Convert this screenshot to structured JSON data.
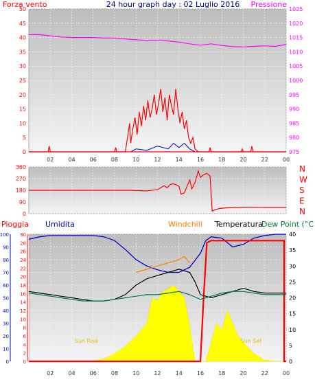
{
  "header": {
    "left_title": "Forza vento",
    "center_title": "24 hour graph day : 02 Luglio 2016",
    "right_title": "Pressione"
  },
  "colors": {
    "wind_red": "#ff0000",
    "pressure_magenta": "#ff00ff",
    "humidity_blue": "#0000cc",
    "windchill_orange": "#ff8000",
    "temperature_black": "#000000",
    "dewpoint_green": "#007a3d",
    "solar_yellow": "#ffff00",
    "title_blue": "#000080",
    "plot_bg_top": "#bdbdbd",
    "plot_bg_bottom": "#f4f4f4"
  },
  "chart_data": [
    {
      "type": "line",
      "name": "wind-pressure",
      "left_axis": {
        "ticks": [
          "0",
          "5",
          "10",
          "15",
          "20",
          "25",
          "30",
          "35",
          "40",
          "45",
          "50"
        ],
        "ylim": [
          0,
          50
        ]
      },
      "right_axis": {
        "ticks": [
          "975",
          "980",
          "985",
          "990",
          "995",
          "1000",
          "1005",
          "1010",
          "1015",
          "1020",
          "1025"
        ],
        "ylim": [
          975,
          1025
        ]
      },
      "x_ticks": [
        "02",
        "04",
        "06",
        "08",
        "10",
        "12",
        "14",
        "16",
        "18",
        "20",
        "22",
        "00"
      ],
      "xlim": [
        0,
        24
      ],
      "series": [
        {
          "axis": "right",
          "points": [
            [
              0,
              1016
            ],
            [
              1,
              1016
            ],
            [
              2,
              1015.6
            ],
            [
              3,
              1015.2
            ],
            [
              4,
              1015
            ],
            [
              5,
              1015
            ],
            [
              6,
              1015
            ],
            [
              7,
              1014.8
            ],
            [
              8,
              1014.8
            ],
            [
              9,
              1014.5
            ],
            [
              10,
              1014.2
            ],
            [
              11,
              1014
            ],
            [
              12,
              1014
            ],
            [
              13,
              1013.8
            ],
            [
              14,
              1013.4
            ],
            [
              15,
              1012.8
            ],
            [
              16,
              1012.3
            ],
            [
              17,
              1012.8
            ],
            [
              18,
              1012.2
            ],
            [
              19,
              1011.8
            ],
            [
              20,
              1011.7
            ],
            [
              21,
              1011.9
            ],
            [
              22,
              1012.1
            ],
            [
              23,
              1011.9
            ],
            [
              24,
              1012.6
            ]
          ]
        },
        {
          "axis": "left",
          "points": [
            [
              0,
              0
            ],
            [
              1.8,
              0
            ],
            [
              1.9,
              2
            ],
            [
              2.0,
              0
            ],
            [
              8.0,
              0
            ],
            [
              8.1,
              1.5
            ],
            [
              8.2,
              0
            ],
            [
              9.0,
              0
            ],
            [
              9.2,
              5
            ],
            [
              9.4,
              10
            ],
            [
              9.5,
              3
            ],
            [
              9.7,
              8
            ],
            [
              9.9,
              12
            ],
            [
              10.1,
              6
            ],
            [
              10.3,
              14
            ],
            [
              10.5,
              9
            ],
            [
              10.7,
              16
            ],
            [
              10.9,
              11
            ],
            [
              11.1,
              18
            ],
            [
              11.3,
              12
            ],
            [
              11.5,
              15
            ],
            [
              11.7,
              20
            ],
            [
              11.9,
              13
            ],
            [
              12.1,
              17
            ],
            [
              12.3,
              22
            ],
            [
              12.5,
              14
            ],
            [
              12.7,
              19
            ],
            [
              12.9,
              11
            ],
            [
              13.1,
              20
            ],
            [
              13.3,
              16
            ],
            [
              13.5,
              13
            ],
            [
              13.7,
              22
            ],
            [
              13.9,
              15
            ],
            [
              14.1,
              10
            ],
            [
              14.3,
              14
            ],
            [
              14.5,
              8
            ],
            [
              14.7,
              11
            ],
            [
              14.9,
              5
            ],
            [
              15.1,
              3
            ],
            [
              15.3,
              5
            ],
            [
              15.5,
              1
            ],
            [
              15.8,
              0
            ],
            [
              16.8,
              0
            ],
            [
              16.9,
              1.5
            ],
            [
              17.0,
              0
            ],
            [
              19.8,
              0
            ],
            [
              19.9,
              1
            ],
            [
              20.0,
              0
            ],
            [
              20.7,
              0
            ],
            [
              20.8,
              2
            ],
            [
              20.9,
              0
            ],
            [
              24,
              0
            ]
          ]
        },
        {
          "axis": "left",
          "points": [
            [
              9.5,
              0
            ],
            [
              10,
              1
            ],
            [
              11,
              0.5
            ],
            [
              12,
              2
            ],
            [
              13,
              1
            ],
            [
              13.5,
              3
            ],
            [
              14,
              1.5
            ],
            [
              14.5,
              3
            ],
            [
              15,
              1
            ],
            [
              15.5,
              0
            ]
          ]
        }
      ]
    },
    {
      "type": "line",
      "name": "wind-direction",
      "left_axis": {
        "ticks": [
          "0",
          "90",
          "180",
          "270",
          "360"
        ],
        "ylim": [
          0,
          360
        ]
      },
      "right_labels": [
        "N",
        "W",
        "S",
        "E",
        "N"
      ],
      "x_ticks": [
        "02",
        "04",
        "06",
        "08",
        "10",
        "12",
        "14",
        "16",
        "18",
        "20",
        "22",
        "00"
      ],
      "xlim": [
        0,
        24
      ],
      "points": [
        [
          0,
          180
        ],
        [
          9.5,
          180
        ],
        [
          10,
          178
        ],
        [
          11,
          175
        ],
        [
          12,
          185
        ],
        [
          12.3,
          200
        ],
        [
          12.6,
          215
        ],
        [
          12.9,
          200
        ],
        [
          13.2,
          225
        ],
        [
          13.5,
          230
        ],
        [
          13.8,
          220
        ],
        [
          14,
          210
        ],
        [
          14.2,
          150
        ],
        [
          14.5,
          160
        ],
        [
          14.8,
          220
        ],
        [
          15,
          260
        ],
        [
          15.2,
          190
        ],
        [
          15.5,
          240
        ],
        [
          15.8,
          330
        ],
        [
          16,
          280
        ],
        [
          16.3,
          300
        ],
        [
          16.6,
          310
        ],
        [
          16.9,
          290
        ],
        [
          17.1,
          20
        ],
        [
          17.4,
          30
        ],
        [
          17.8,
          40
        ],
        [
          18.5,
          45
        ],
        [
          20,
          50
        ],
        [
          21,
          50
        ],
        [
          22,
          48
        ],
        [
          24,
          48
        ]
      ]
    },
    {
      "type": "line",
      "name": "precip-humidity-temperature",
      "labels": {
        "rain": "Pioggia",
        "humidity": "Umidita",
        "windchill": "Windchill",
        "temperature": "Temperatura",
        "dewpoint": "Dew Point (°C",
        "sunrise": "Sun Rise",
        "sunset": "Sun Set"
      },
      "humidity_axis": {
        "ticks": [
          "0",
          "10",
          "20",
          "30",
          "40",
          "50",
          "60",
          "70",
          "80",
          "90",
          "100"
        ],
        "ylim": [
          0,
          100
        ]
      },
      "rain_axis": {
        "ticks": [
          "0",
          "2",
          "4",
          "6",
          "8",
          "10",
          "12",
          "14",
          "16",
          "18",
          "20",
          "22",
          "24",
          "26",
          "28",
          "30"
        ],
        "ylim": [
          0,
          30
        ]
      },
      "temp_axis": {
        "ticks": [
          "0",
          "5",
          "10",
          "15",
          "20",
          "25",
          "30",
          "35",
          "40"
        ],
        "ylim": [
          0,
          40
        ]
      },
      "x_ticks": [
        "02",
        "04",
        "06",
        "08",
        "10",
        "12",
        "14",
        "16",
        "18",
        "20",
        "22",
        "00"
      ],
      "xlim": [
        0,
        24
      ],
      "series": [
        {
          "label": "solar",
          "axis": "humidity",
          "points": [
            [
              0,
              0
            ],
            [
              5.3,
              0
            ],
            [
              6,
              0.5
            ],
            [
              7,
              2
            ],
            [
              8,
              6
            ],
            [
              9,
              12
            ],
            [
              10,
              20
            ],
            [
              11,
              30
            ],
            [
              11.5,
              50
            ],
            [
              12,
              48
            ],
            [
              12.5,
              55
            ],
            [
              13,
              57
            ],
            [
              13.5,
              60
            ],
            [
              14,
              55
            ],
            [
              14.5,
              50
            ],
            [
              15,
              28
            ],
            [
              15.5,
              0
            ],
            [
              16.5,
              0
            ],
            [
              17,
              15
            ],
            [
              17.5,
              30
            ],
            [
              18,
              25
            ],
            [
              18.5,
              40
            ],
            [
              19,
              30
            ],
            [
              19.5,
              20
            ],
            [
              20,
              15
            ],
            [
              21,
              6
            ],
            [
              22,
              1
            ],
            [
              23,
              0
            ],
            [
              24,
              0
            ]
          ]
        },
        {
          "label": "humidity",
          "axis": "humidity",
          "points": [
            [
              0,
              96
            ],
            [
              1,
              98
            ],
            [
              2,
              99
            ],
            [
              3,
              99
            ],
            [
              4,
              99
            ],
            [
              5,
              99
            ],
            [
              6,
              99
            ],
            [
              7,
              98
            ],
            [
              8,
              95
            ],
            [
              9,
              88
            ],
            [
              10,
              80
            ],
            [
              11,
              75
            ],
            [
              12,
              72
            ],
            [
              13,
              70
            ],
            [
              14,
              70
            ],
            [
              15,
              74
            ],
            [
              16,
              85
            ],
            [
              16.5,
              95
            ],
            [
              17,
              98
            ],
            [
              18,
              97
            ],
            [
              19,
              90
            ],
            [
              20,
              92
            ],
            [
              21,
              97
            ],
            [
              22,
              99
            ],
            [
              23,
              100
            ],
            [
              24,
              100
            ]
          ]
        },
        {
          "label": "rain",
          "axis": "rain",
          "points": [
            [
              0,
              0
            ],
            [
              16,
              0
            ],
            [
              16.3,
              15
            ],
            [
              16.6,
              28
            ],
            [
              17,
              28.5
            ],
            [
              23.8,
              28.5
            ],
            [
              23.8,
              0
            ],
            [
              24,
              0
            ]
          ]
        },
        {
          "label": "windchill",
          "axis": "temp",
          "points": [
            [
              10,
              28
            ],
            [
              11,
              29
            ],
            [
              12,
              30
            ],
            [
              13,
              31
            ],
            [
              14,
              32
            ],
            [
              14.5,
              33
            ],
            [
              15,
              31
            ]
          ]
        },
        {
          "label": "temperature",
          "axis": "temp",
          "points": [
            [
              0,
              22
            ],
            [
              1,
              21.5
            ],
            [
              2,
              21
            ],
            [
              3,
              20.5
            ],
            [
              4,
              20
            ],
            [
              5,
              19.5
            ],
            [
              6,
              19
            ],
            [
              7,
              19
            ],
            [
              8,
              19.5
            ],
            [
              9,
              21
            ],
            [
              10,
              24
            ],
            [
              11,
              26
            ],
            [
              12,
              27
            ],
            [
              13,
              28
            ],
            [
              14,
              29
            ],
            [
              15,
              28
            ],
            [
              15.5,
              25
            ],
            [
              16,
              21
            ],
            [
              17,
              20
            ],
            [
              18,
              21
            ],
            [
              19,
              22
            ],
            [
              20,
              23
            ],
            [
              21,
              22
            ],
            [
              22,
              21.5
            ],
            [
              23,
              21.5
            ],
            [
              24,
              21.5
            ]
          ]
        },
        {
          "label": "dewpoint",
          "axis": "temp",
          "points": [
            [
              0,
              21.5
            ],
            [
              1,
              21
            ],
            [
              2,
              20.5
            ],
            [
              3,
              20
            ],
            [
              4,
              19.5
            ],
            [
              5,
              19
            ],
            [
              6,
              19
            ],
            [
              7,
              19
            ],
            [
              8,
              19.5
            ],
            [
              9,
              20
            ],
            [
              10,
              20.5
            ],
            [
              11,
              21
            ],
            [
              12,
              21
            ],
            [
              13,
              21.5
            ],
            [
              14,
              22
            ],
            [
              15,
              21
            ],
            [
              16,
              19.5
            ],
            [
              17,
              20.5
            ],
            [
              18,
              21.5
            ],
            [
              19,
              22
            ],
            [
              20,
              22
            ],
            [
              21,
              21.5
            ],
            [
              22,
              21
            ],
            [
              23,
              21
            ],
            [
              24,
              21
            ]
          ]
        }
      ]
    }
  ]
}
